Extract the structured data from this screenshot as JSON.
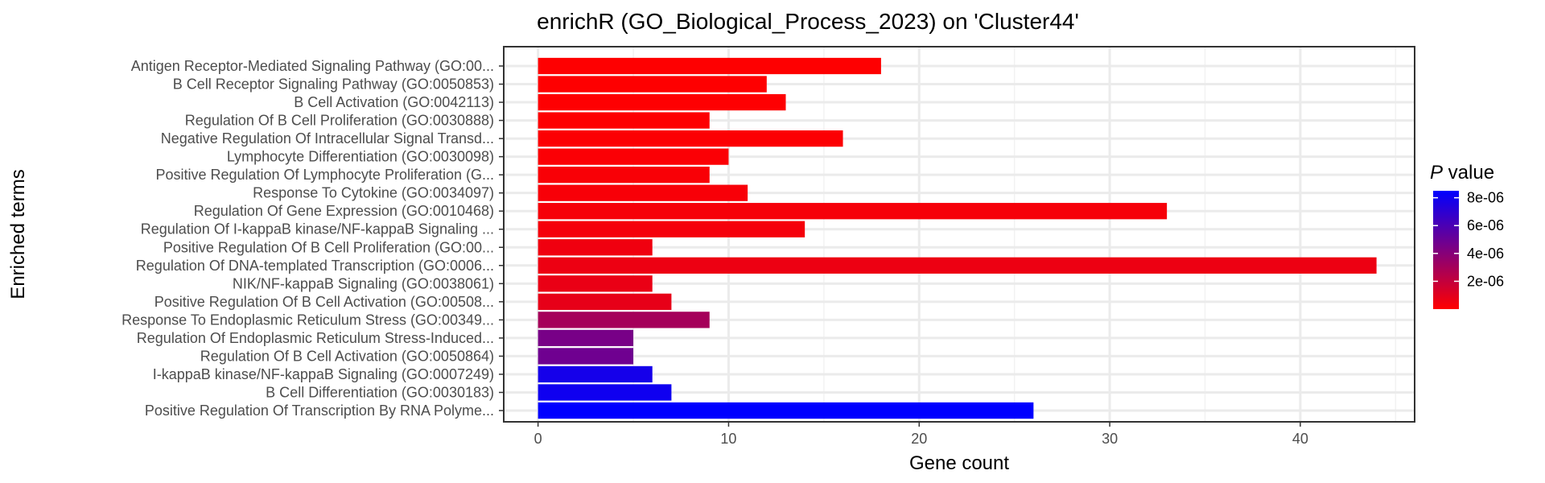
{
  "chart_data": {
    "type": "bar",
    "orientation": "horizontal",
    "title": "enrichR (GO_Biological_Process_2023) on 'Cluster44'",
    "xlabel": "Gene count",
    "ylabel": "Enriched terms",
    "xlim": [
      -1.8,
      46
    ],
    "xticks": [
      0,
      10,
      20,
      30,
      40
    ],
    "grid": true,
    "categories": [
      "Antigen Receptor-Mediated Signaling Pathway (GO:00...",
      "B Cell Receptor Signaling Pathway (GO:0050853)",
      "B Cell Activation (GO:0042113)",
      "Regulation Of B Cell Proliferation (GO:0030888)",
      "Negative Regulation Of Intracellular Signal Transd...",
      "Lymphocyte Differentiation (GO:0030098)",
      "Positive Regulation Of Lymphocyte Proliferation (G...",
      "Response To Cytokine (GO:0034097)",
      "Regulation Of Gene Expression (GO:0010468)",
      "Regulation Of I-kappaB kinase/NF-kappaB Signaling ...",
      "Positive Regulation Of B Cell Proliferation (GO:00...",
      "Regulation Of DNA-templated Transcription (GO:0006...",
      "NIK/NF-kappaB Signaling (GO:0038061)",
      "Positive Regulation Of B Cell Activation (GO:00508...",
      "Response To Endoplasmic Reticulum Stress (GO:00349...",
      "Regulation Of Endoplasmic Reticulum Stress-Induced...",
      "Regulation Of B Cell Activation (GO:0050864)",
      "I-kappaB kinase/NF-kappaB Signaling (GO:0007249)",
      "B Cell Differentiation (GO:0030183)",
      "Positive Regulation Of Transcription By RNA Polyme..."
    ],
    "values": [
      18,
      12,
      13,
      9,
      16,
      10,
      9,
      11,
      33,
      14,
      6,
      44,
      6,
      7,
      9,
      5,
      5,
      6,
      7,
      26
    ],
    "p_values": [
      2e-08,
      3e-08,
      5e-08,
      8e-08,
      1e-07,
      1.5e-07,
      2e-07,
      2.5e-07,
      3e-07,
      3.5e-07,
      5e-07,
      6e-07,
      7e-07,
      8e-07,
      3e-06,
      4.5e-06,
      4.8e-06,
      7.8e-06,
      8e-06,
      8.5e-06
    ],
    "legend": {
      "title_italic": "P",
      "title_rest": " value",
      "position": "right",
      "colors": {
        "low": "#ff0000",
        "high": "#0000ff"
      },
      "range": [
        0,
        8.5e-06
      ],
      "ticks": [
        {
          "value": 2e-06,
          "label": "2e-06"
        },
        {
          "value": 4e-06,
          "label": "4e-06"
        },
        {
          "value": 6e-06,
          "label": "6e-06"
        },
        {
          "value": 8e-06,
          "label": "8e-06"
        }
      ]
    }
  }
}
